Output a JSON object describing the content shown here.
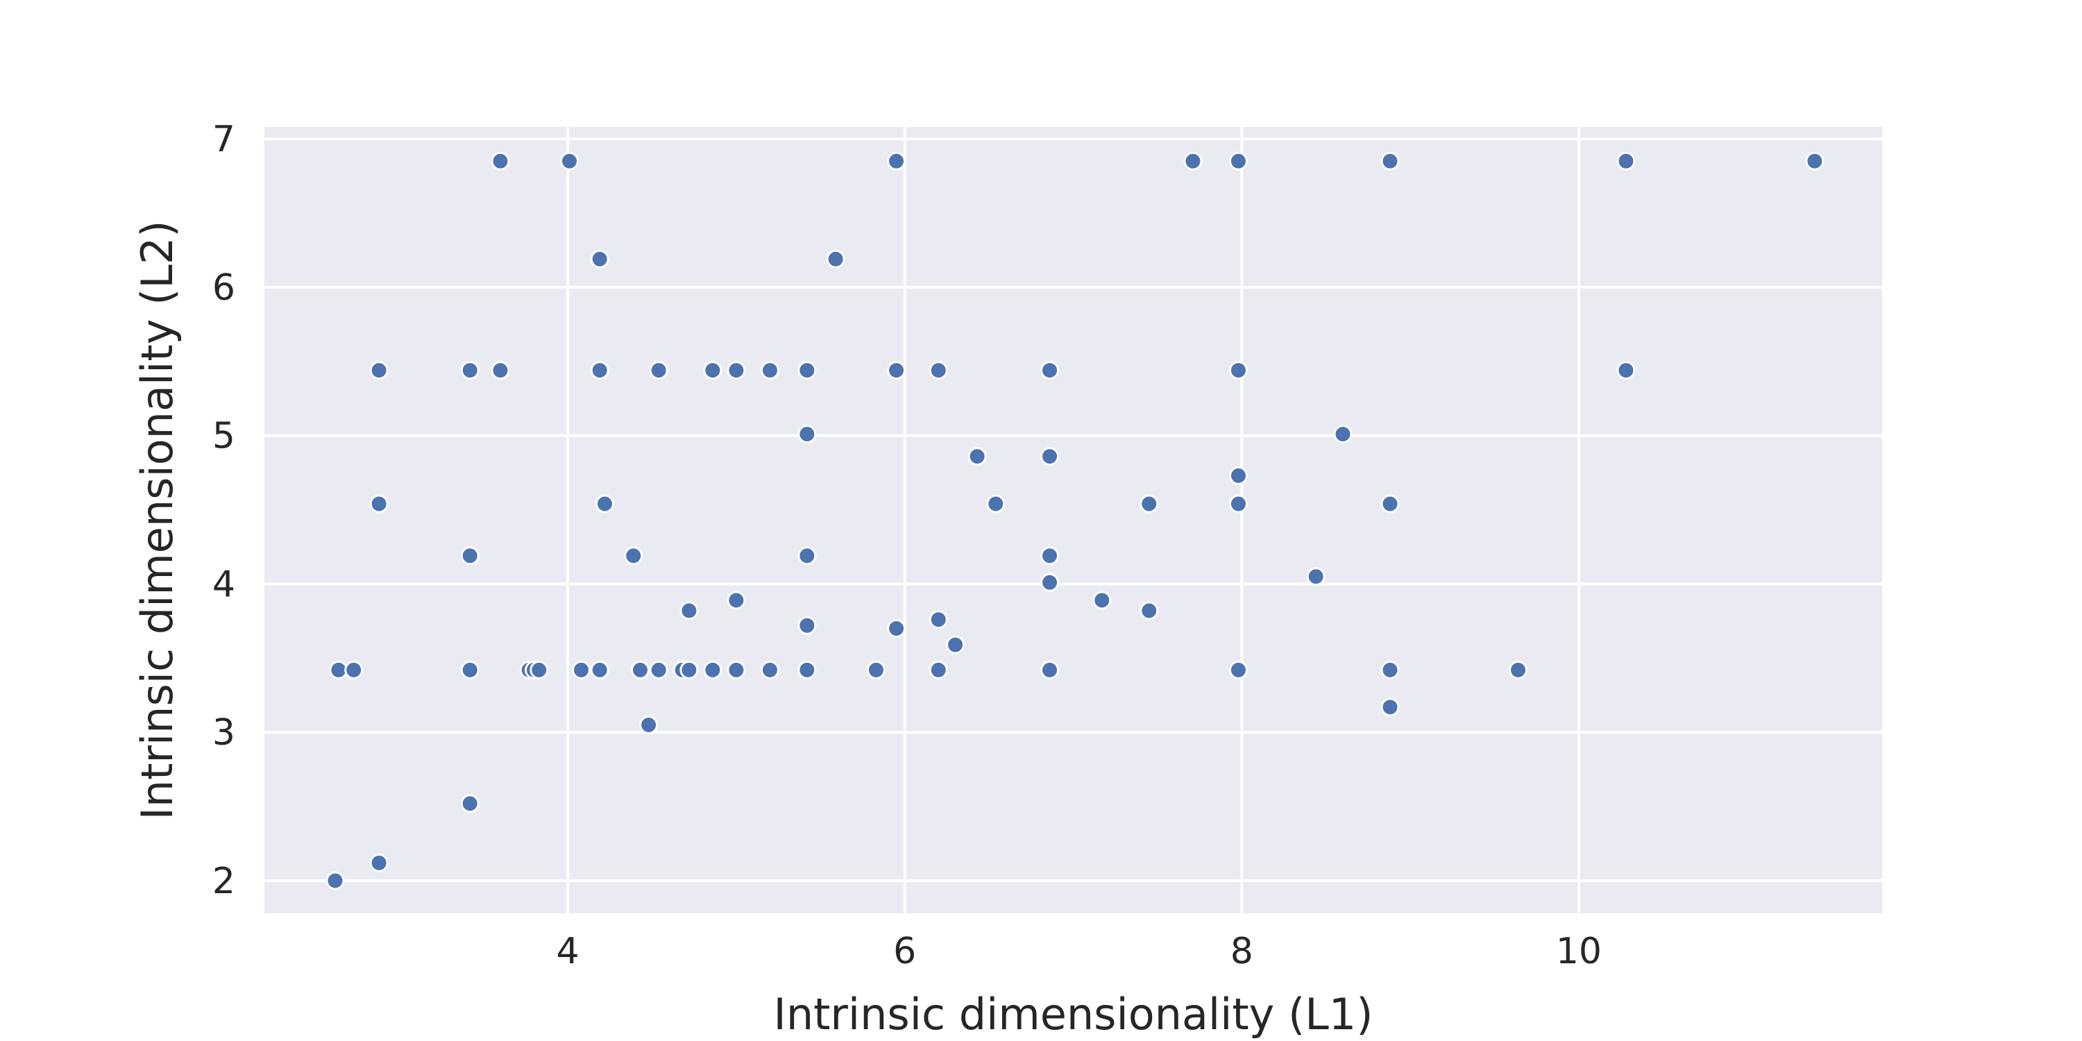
{
  "chart_data": {
    "type": "scatter",
    "title": "",
    "xlabel": "Intrinsic dimensionality (L1)",
    "ylabel": "Intrinsic dimensionality (L2)",
    "xlim": [
      2.2,
      11.8
    ],
    "ylim": [
      1.78,
      7.08
    ],
    "xticks": [
      4,
      6,
      8,
      10
    ],
    "yticks": [
      2,
      3,
      4,
      5,
      6,
      7
    ],
    "grid": true,
    "background": "#eaeaf2",
    "marker_color": "#4c72b0",
    "points": [
      {
        "x": 2.62,
        "y": 2.0
      },
      {
        "x": 2.88,
        "y": 2.12
      },
      {
        "x": 3.42,
        "y": 2.52
      },
      {
        "x": 4.48,
        "y": 3.05
      },
      {
        "x": 8.88,
        "y": 3.17
      },
      {
        "x": 2.64,
        "y": 3.42
      },
      {
        "x": 2.73,
        "y": 3.42
      },
      {
        "x": 3.42,
        "y": 3.42
      },
      {
        "x": 3.77,
        "y": 3.42
      },
      {
        "x": 3.8,
        "y": 3.42
      },
      {
        "x": 3.83,
        "y": 3.42
      },
      {
        "x": 4.08,
        "y": 3.42
      },
      {
        "x": 4.19,
        "y": 3.42
      },
      {
        "x": 4.43,
        "y": 3.42
      },
      {
        "x": 4.54,
        "y": 3.42
      },
      {
        "x": 4.68,
        "y": 3.42
      },
      {
        "x": 4.72,
        "y": 3.42
      },
      {
        "x": 4.86,
        "y": 3.42
      },
      {
        "x": 5.0,
        "y": 3.42
      },
      {
        "x": 5.2,
        "y": 3.42
      },
      {
        "x": 5.42,
        "y": 3.42
      },
      {
        "x": 5.83,
        "y": 3.42
      },
      {
        "x": 6.2,
        "y": 3.42
      },
      {
        "x": 6.86,
        "y": 3.42
      },
      {
        "x": 7.98,
        "y": 3.42
      },
      {
        "x": 8.88,
        "y": 3.42
      },
      {
        "x": 9.64,
        "y": 3.42
      },
      {
        "x": 6.3,
        "y": 3.59
      },
      {
        "x": 5.95,
        "y": 3.7
      },
      {
        "x": 5.42,
        "y": 3.72
      },
      {
        "x": 6.2,
        "y": 3.76
      },
      {
        "x": 4.72,
        "y": 3.82
      },
      {
        "x": 7.45,
        "y": 3.82
      },
      {
        "x": 5.0,
        "y": 3.89
      },
      {
        "x": 7.17,
        "y": 3.89
      },
      {
        "x": 6.86,
        "y": 4.01
      },
      {
        "x": 8.44,
        "y": 4.05
      },
      {
        "x": 3.42,
        "y": 4.19
      },
      {
        "x": 4.39,
        "y": 4.19
      },
      {
        "x": 5.42,
        "y": 4.19
      },
      {
        "x": 6.86,
        "y": 4.19
      },
      {
        "x": 2.88,
        "y": 4.54
      },
      {
        "x": 4.22,
        "y": 4.54
      },
      {
        "x": 6.54,
        "y": 4.54
      },
      {
        "x": 7.45,
        "y": 4.54
      },
      {
        "x": 7.98,
        "y": 4.54
      },
      {
        "x": 8.88,
        "y": 4.54
      },
      {
        "x": 7.98,
        "y": 4.73
      },
      {
        "x": 6.43,
        "y": 4.86
      },
      {
        "x": 6.86,
        "y": 4.86
      },
      {
        "x": 5.42,
        "y": 5.01
      },
      {
        "x": 8.6,
        "y": 5.01
      },
      {
        "x": 2.88,
        "y": 5.44
      },
      {
        "x": 3.42,
        "y": 5.44
      },
      {
        "x": 3.6,
        "y": 5.44
      },
      {
        "x": 4.19,
        "y": 5.44
      },
      {
        "x": 4.54,
        "y": 5.44
      },
      {
        "x": 4.86,
        "y": 5.44
      },
      {
        "x": 5.0,
        "y": 5.44
      },
      {
        "x": 5.2,
        "y": 5.44
      },
      {
        "x": 5.42,
        "y": 5.44
      },
      {
        "x": 5.95,
        "y": 5.44
      },
      {
        "x": 6.2,
        "y": 5.44
      },
      {
        "x": 6.86,
        "y": 5.44
      },
      {
        "x": 7.98,
        "y": 5.44
      },
      {
        "x": 10.28,
        "y": 5.44
      },
      {
        "x": 4.19,
        "y": 6.19
      },
      {
        "x": 5.59,
        "y": 6.19
      },
      {
        "x": 3.6,
        "y": 6.85
      },
      {
        "x": 4.01,
        "y": 6.85
      },
      {
        "x": 5.95,
        "y": 6.85
      },
      {
        "x": 7.71,
        "y": 6.85
      },
      {
        "x": 7.98,
        "y": 6.85
      },
      {
        "x": 8.88,
        "y": 6.85
      },
      {
        "x": 10.28,
        "y": 6.85
      },
      {
        "x": 11.4,
        "y": 6.85
      }
    ]
  }
}
